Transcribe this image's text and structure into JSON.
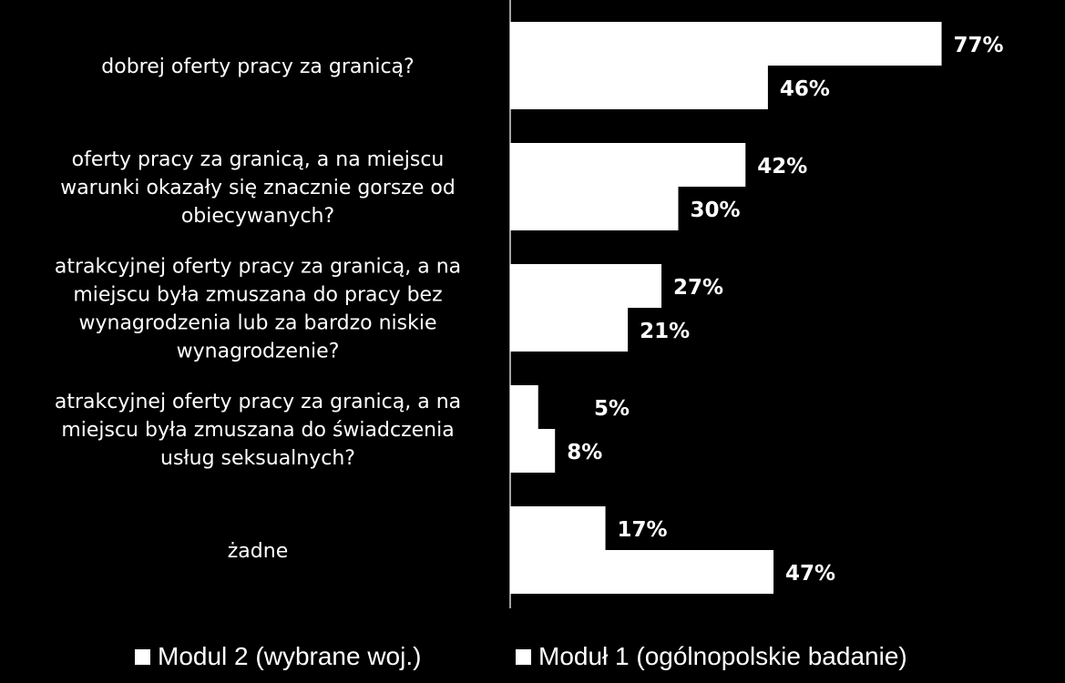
{
  "chart_data": {
    "type": "bar",
    "orientation": "horizontal",
    "categories": [
      "dobrej oferty pracy za granicą?",
      "oferty pracy za granicą, a na miejscu warunki okazały się znacznie gorsze od obiecywanych?",
      "atrakcyjnej oferty pracy za granicą, a na miejscu była zmuszana do pracy bez wynagrodzenia lub za bardzo niskie wynagrodzenie?",
      "atrakcyjnej oferty pracy za granicą, a na miejscu była zmuszana do świadczenia usług seksualnych?",
      "żadne"
    ],
    "category_lines": [
      [
        "dobrej oferty pracy za granicą?"
      ],
      [
        "oferty pracy za granicą, a na miejscu",
        "warunki okazały się znacznie gorsze od",
        "obiecywanych?"
      ],
      [
        "atrakcyjnej oferty pracy za granicą, a na",
        "miejscu była zmuszana do pracy bez",
        "wynagrodzenia lub za bardzo niskie",
        "wynagrodzenie?"
      ],
      [
        "atrakcyjnej oferty pracy za granicą, a na",
        "miejscu była zmuszana do świadczenia",
        "usług seksualnych?"
      ],
      [
        "żadne"
      ]
    ],
    "series": [
      {
        "name": "Modul 2 (wybrane woj.)",
        "values": [
          77,
          42,
          27,
          5,
          17
        ],
        "labels": [
          "77%",
          "42%",
          "27%",
          "5%",
          "17%"
        ]
      },
      {
        "name": "Moduł 1 (ogólnopolskie badanie)",
        "values": [
          46,
          30,
          21,
          8,
          47
        ],
        "labels": [
          "46%",
          "30%",
          "21%",
          "8%",
          "47%"
        ]
      }
    ],
    "xlim": [
      0,
      100
    ],
    "grid": false,
    "legend_position": "bottom",
    "colors": {
      "background": "#000000",
      "bars": "#ffffff",
      "text": "#ffffff"
    }
  }
}
